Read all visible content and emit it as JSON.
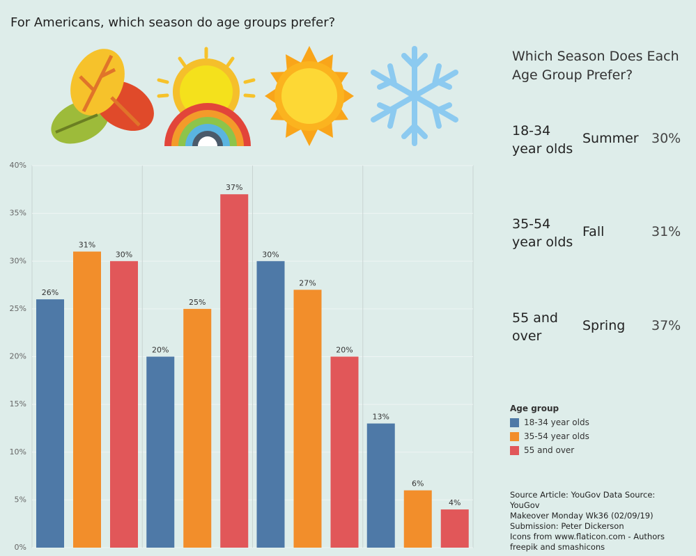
{
  "page_title": "For Americans, which season do age groups prefer?",
  "chart_data": {
    "type": "bar",
    "categories": [
      null,
      null,
      null,
      null
    ],
    "series": [
      {
        "name": "18-34 year olds",
        "color": "#4e79a7",
        "values": [
          26,
          20,
          30,
          13
        ],
        "value_labels": [
          "26%",
          "20%",
          "30%",
          "13%"
        ]
      },
      {
        "name": "35-54 year olds",
        "color": "#f28e2b",
        "values": [
          31,
          25,
          27,
          6
        ],
        "value_labels": [
          "31%",
          "25%",
          "27%",
          "6%"
        ]
      },
      {
        "name": "55 and over",
        "color": "#e15759",
        "values": [
          30,
          37,
          20,
          4
        ],
        "value_labels": [
          "30%",
          "37%",
          "20%",
          "4%"
        ]
      }
    ],
    "ylim": [
      0,
      40
    ],
    "yticks": [
      {
        "value": 0,
        "label": "0%"
      },
      {
        "value": 5,
        "label": "5%"
      },
      {
        "value": 10,
        "label": "10%"
      },
      {
        "value": 15,
        "label": "15%"
      },
      {
        "value": 20,
        "label": "20%"
      },
      {
        "value": 25,
        "label": "25%"
      },
      {
        "value": 30,
        "label": "30%"
      },
      {
        "value": 35,
        "label": "35%"
      },
      {
        "value": 40,
        "label": "40%"
      }
    ],
    "grid": true,
    "legend_title": "Age group"
  },
  "summary": {
    "title": "Which Season Does Each Age Group Prefer?",
    "rows": [
      [
        "18-34 year olds",
        "Summer",
        "30%"
      ],
      [
        "35-54 year olds",
        "Fall",
        "31%"
      ],
      [
        "55 and over",
        "Spring",
        "37%"
      ]
    ]
  },
  "source": [
    "Source Article: YouGov Data Source: YouGov",
    "Makeover Monday Wk36 (02/09/19)",
    "Submission: Peter Dickerson",
    "Icons from www.flaticon.com - Authors freepik and smashicons"
  ]
}
